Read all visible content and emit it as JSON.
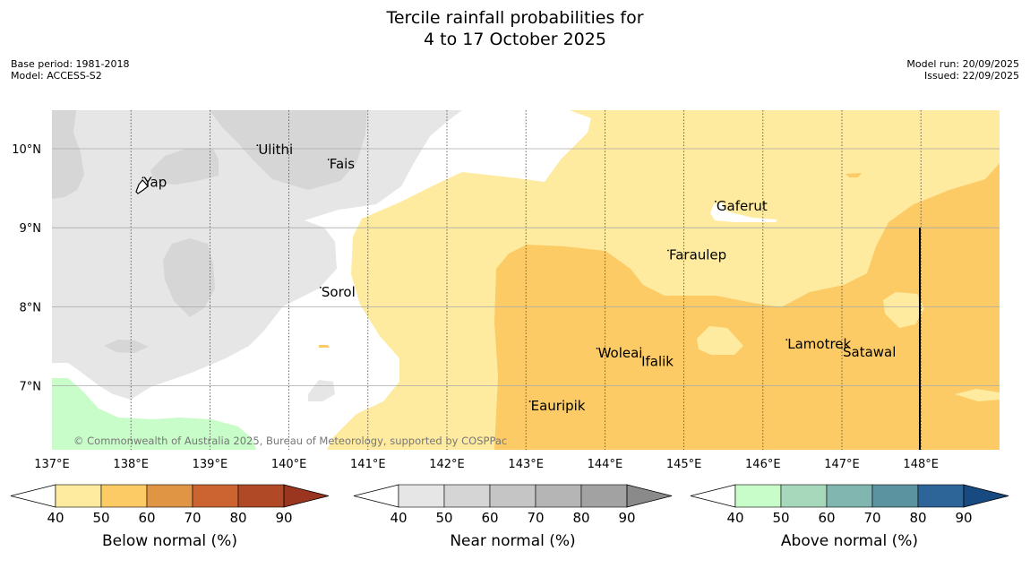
{
  "title_line1": "Tercile rainfall probabilities for",
  "title_line2": "4 to 17 October 2025",
  "base_period": "Base period: 1981-2018",
  "model": "Model: ACCESS-S2",
  "model_run": "Model run: 20/09/2025",
  "issued": "Issued: 22/09/2025",
  "copyright": "© Commonwealth of Australia 2025, Bureau of Meteorology, supported by COSPPac",
  "map": {
    "lon_range": [
      137,
      149
    ],
    "lat_range": [
      6.2,
      10.5
    ],
    "lon_ticks": [
      {
        "v": 137,
        "label": "137°E"
      },
      {
        "v": 138,
        "label": "138°E"
      },
      {
        "v": 139,
        "label": "139°E"
      },
      {
        "v": 140,
        "label": "140°E"
      },
      {
        "v": 141,
        "label": "141°E"
      },
      {
        "v": 142,
        "label": "142°E"
      },
      {
        "v": 143,
        "label": "143°E"
      },
      {
        "v": 144,
        "label": "144°E"
      },
      {
        "v": 145,
        "label": "145°E"
      },
      {
        "v": 146,
        "label": "146°E"
      },
      {
        "v": 147,
        "label": "147°E"
      },
      {
        "v": 148,
        "label": "148°E"
      }
    ],
    "lat_ticks": [
      {
        "v": 10,
        "label": "10°N"
      },
      {
        "v": 9,
        "label": "9°N"
      },
      {
        "v": 8,
        "label": "8°N"
      },
      {
        "v": 7,
        "label": "7°N"
      }
    ],
    "places": [
      {
        "name": "Ulithi",
        "lon": 139.6,
        "lat": 9.93
      },
      {
        "name": "Fais",
        "lon": 140.5,
        "lat": 9.75
      },
      {
        "name": "Yap",
        "lon": 138.15,
        "lat": 9.52
      },
      {
        "name": "Gaferut",
        "lon": 145.4,
        "lat": 9.22
      },
      {
        "name": "Faraulep",
        "lon": 144.8,
        "lat": 8.6
      },
      {
        "name": "Sorol",
        "lon": 140.4,
        "lat": 8.13
      },
      {
        "name": "Woleai",
        "lon": 143.9,
        "lat": 7.36
      },
      {
        "name": "Ifalik",
        "lon": 144.45,
        "lat": 7.25
      },
      {
        "name": "Lamotrek",
        "lon": 146.3,
        "lat": 7.47
      },
      {
        "name": "Satawal",
        "lon": 147.0,
        "lat": 7.37
      },
      {
        "name": "Eauripik",
        "lon": 143.05,
        "lat": 6.69
      }
    ]
  },
  "legends": [
    {
      "label": "Below normal (%)",
      "ticks": [
        "40",
        "50",
        "60",
        "70",
        "80",
        "90"
      ],
      "colors": [
        "#feeb9f",
        "#fdcb65",
        "#e09545",
        "#cc6432",
        "#b04a26"
      ],
      "over": "#9a3520"
    },
    {
      "label": "Near normal (%)",
      "ticks": [
        "40",
        "50",
        "60",
        "70",
        "80",
        "90"
      ],
      "colors": [
        "#e6e6e6",
        "#d5d5d5",
        "#c5c5c5",
        "#b5b5b5",
        "#a2a2a2"
      ],
      "over": "#8a8a8a"
    },
    {
      "label": "Above normal (%)",
      "ticks": [
        "40",
        "50",
        "60",
        "70",
        "80",
        "90"
      ],
      "colors": [
        "#c8fcc8",
        "#a7d8bc",
        "#80b5b0",
        "#5b93a0",
        "#2e6599"
      ],
      "over": "#174a80"
    }
  ]
}
